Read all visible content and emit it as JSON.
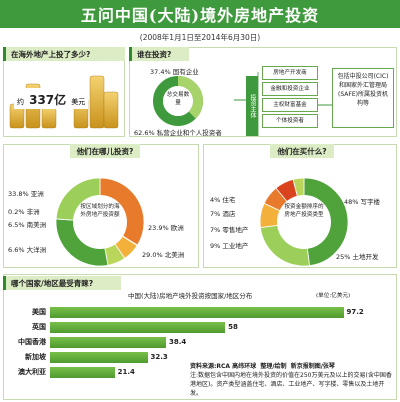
{
  "header": {
    "title": "五问中国(大陆)境外房地产投资",
    "subtitle": "(2008年1月1日至2014年6月30日)"
  },
  "q1": {
    "question": "在海外地产上投了多少?",
    "prefix": "约",
    "amount": "337亿",
    "unit": "美元"
  },
  "q2": {
    "question": "谁在投资?",
    "state_pct": "37.4% 国有企业",
    "private_pct": "62.6% 私营企业和个人投资者",
    "center_label": "总交易数量",
    "investor_label": "投资主体",
    "types": [
      "房地产开发商",
      "金融和投资企业",
      "主权财富基金",
      "个体投资者"
    ],
    "sovereign_note": "包括中投公司(CIC)和国家外汇管理局(SAFE)所属投资机构等"
  },
  "q3": {
    "question": "他们在哪儿投资?",
    "center_label": "按区域划分的海外房地产投资额",
    "segments": [
      {
        "label": "亚洲",
        "pct": "33.8%",
        "value": 33.8,
        "color": "#e87a2b"
      },
      {
        "label": "非洲",
        "pct": "0.2%",
        "value": 0.2,
        "color": "#d9431e"
      },
      {
        "label": "南美洲",
        "pct": "6.5%",
        "value": 6.5,
        "color": "#f3b13b"
      },
      {
        "label": "大洋洲",
        "pct": "6.6%",
        "value": 6.6,
        "color": "#b9d65a"
      },
      {
        "label": "北美洲",
        "pct": "29.0%",
        "value": 29.0,
        "color": "#4fa33a"
      },
      {
        "label": "欧洲",
        "pct": "23.9%",
        "value": 23.9,
        "color": "#9ccf5a"
      }
    ]
  },
  "q4": {
    "question": "他们在买什么?",
    "center_label": "按资金额排序的房地产投资类型",
    "segments": [
      {
        "label": "写字楼",
        "pct": "48%",
        "value": 48,
        "color": "#4fa33a"
      },
      {
        "label": "土地开发",
        "pct": "25%",
        "value": 25,
        "color": "#9ccf5a"
      },
      {
        "label": "工业地产",
        "pct": "9%",
        "value": 9,
        "color": "#f3b13b"
      },
      {
        "label": "零售地产",
        "pct": "7%",
        "value": 7,
        "color": "#e87a2b"
      },
      {
        "label": "酒店",
        "pct": "7%",
        "value": 7,
        "color": "#d9431e"
      },
      {
        "label": "住宅",
        "pct": "4%",
        "value": 4,
        "color": "#b9d65a"
      }
    ]
  },
  "q5": {
    "question": "哪个国家/地区最受青睐?",
    "chart_title": "中国(大陆)房地产境外投资按国家/地区分布",
    "unit": "(单位:亿美元)"
  },
  "chart_data": {
    "type": "bar",
    "categories": [
      "美国",
      "英国",
      "中国香港",
      "新加坡",
      "澳大利亚"
    ],
    "values": [
      97.2,
      58,
      38.4,
      32.3,
      21.4
    ],
    "title": "中国(大陆)房地产境外投资按国家/地区分布",
    "ylabel": "(单位:亿美元)",
    "orientation": "horizontal"
  },
  "source": {
    "line1": "资料来源:RCA 高纬环球",
    "line2": "整理/绘制",
    "line3": "新京报制图/张琴",
    "note": "注:数据包含中国内地在境外投资的价值在250万美元及以上的交易(含中国香港地区)。资产类型涵盖住宅、酒店、工业地产、写字楼、零售以及土地开发。"
  },
  "colors": {
    "accent": "#3e9a3c",
    "panel": "#dcecc4"
  }
}
